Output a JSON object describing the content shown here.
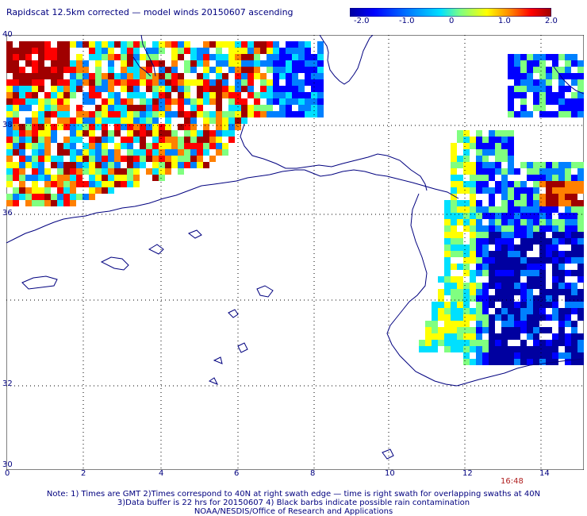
{
  "title": "Rapidscat 12.5km corrected — model winds 20150607 ascending",
  "colorbar": {
    "ticks": [
      "-2.0",
      "-1.0",
      "0",
      "1.0",
      "2.0"
    ],
    "tick_values": [
      -2.0,
      -1.0,
      0,
      1.0,
      2.0
    ],
    "colors": [
      "#0000a0",
      "#0000ff",
      "#0080ff",
      "#00e0ff",
      "#80ff80",
      "#ffff00",
      "#ff8000",
      "#ff0000",
      "#a00000"
    ]
  },
  "map": {
    "lat_labels": [
      "40",
      "38",
      "36",
      "32",
      "30"
    ],
    "lon_labels": [
      "0",
      "2",
      "4",
      "6",
      "8",
      "10",
      "12",
      "14"
    ],
    "coastline_color": "#00007f",
    "grid_color": "#000000"
  },
  "time_label": "16:48",
  "notes": {
    "line1": "Note: 1) Times are GMT 2)Times correspond to 40N at right swath edge — time is right swath for overlapping swaths at 40N",
    "line2": "3)Data buffer is 22 hrs for 20150607 4) Black barbs indicate possible rain contamination",
    "line3": "NOAA/NESDIS/Office of Research and Applications"
  }
}
